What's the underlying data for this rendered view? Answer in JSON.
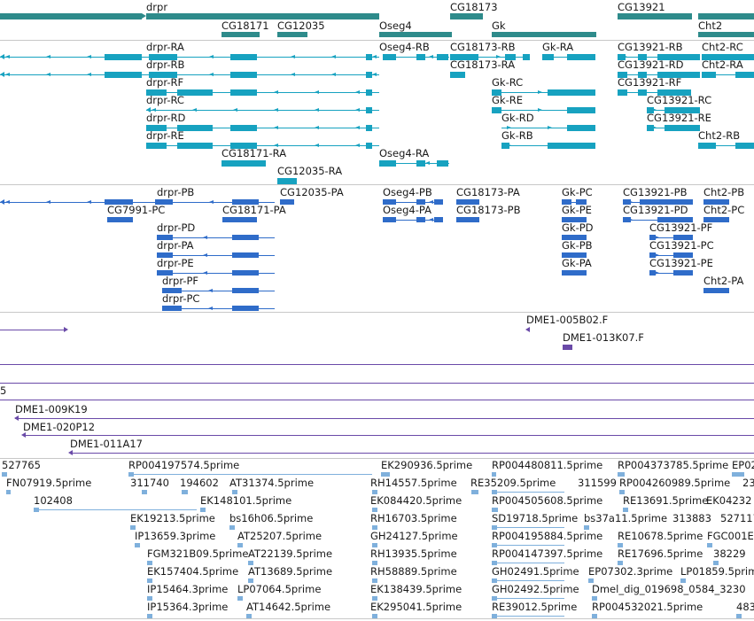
{
  "tracks": {
    "genes": {
      "color": "#2e8b8b",
      "labels": [
        "drpr",
        "CG18173",
        "CG13921",
        "CG18171",
        "CG12035",
        "Oseg4",
        "Gk",
        "Cht2"
      ]
    },
    "transcripts": {
      "color": "#17a2c0",
      "labels": [
        "drpr-RA",
        "Oseg4-RB",
        "CG18173-RB",
        "Gk-RA",
        "CG13921-RB",
        "Cht2-RC",
        "drpr-RB",
        "CG18173-RA",
        "CG13921-RD",
        "Cht2-RA",
        "drpr-RF",
        "Gk-RC",
        "CG13921-RF",
        "drpr-RC",
        "Gk-RE",
        "CG13921-RC",
        "drpr-RD",
        "Gk-RD",
        "CG13921-RE",
        "drpr-RE",
        "Gk-RB",
        "Cht2-RB",
        "CG18171-RA",
        "Oseg4-RA",
        "CG12035-RA"
      ]
    },
    "proteins": {
      "color": "#2f6cc9",
      "labels": [
        "drpr-PB",
        "CG12035-PA",
        "Oseg4-PB",
        "CG18173-PA",
        "Gk-PC",
        "CG13921-PB",
        "Cht2-PB",
        "CG7991-PC",
        "CG18171-PA",
        "Oseg4-PA",
        "CG18173-PB",
        "Gk-PE",
        "CG13921-PD",
        "Cht2-PC",
        "drpr-PD",
        "Gk-PD",
        "CG13921-PF",
        "drpr-PA",
        "Gk-PB",
        "CG13921-PC",
        "drpr-PE",
        "Gk-PA",
        "CG13921-PE",
        "drpr-PF",
        "Cht2-PA",
        "drpr-PC"
      ]
    },
    "clones": {
      "color": "#6a4aa8",
      "labels": [
        "DME1-005B02.F",
        "DME1-013K07.F",
        "DME1-009K19",
        "DME1-020P12",
        "DME1-011A17"
      ],
      "fragment": "5"
    },
    "ests": {
      "color": "#7fb0dc",
      "labels": [
        "527765",
        "RP004197574.5prime",
        "EK290936.5prime",
        "RP004480811.5prime",
        "RP004373785.5prime",
        "EP02",
        "FN07919.5prime",
        "311740",
        "194602",
        "AT31374.5prime",
        "RH14557.5prime",
        "RE35209.5prime",
        "311599",
        "RP004260989.5prime",
        "23",
        "102408",
        "EK148101.5prime",
        "EK084420.5prime",
        "RP004505608.5prime",
        "RE13691.5prime",
        "EK04232",
        "EK19213.5prime",
        "bs16h06.5prime",
        "RH16703.5prime",
        "SD19718.5prime",
        "bs37a11.5prime",
        "313883",
        "527117",
        "IP13659.3prime",
        "AT25207.5prime",
        "GH24127.5prime",
        "RP004195884.5prime",
        "RE10678.5prime",
        "FGC001E",
        "FGM321B09.5prime",
        "AT22139.5prime",
        "RH13935.5prime",
        "RP004147397.5prime",
        "RE17696.5prime",
        "38229",
        "EK157404.5prime",
        "AT13689.5prime",
        "RH58889.5prime",
        "GH02491.5prime",
        "EP07302.3prime",
        "LP01859.5prime",
        "IP15464.3prime",
        "LP07064.5prime",
        "EK138439.5prime",
        "GH02492.5prime",
        "Dmel_dig_019698_0584_3230",
        "IP15364.3prime",
        "AT14642.5prime",
        "EK295041.5prime",
        "RE39012.5prime",
        "RP004532021.5prime",
        "483"
      ]
    }
  }
}
